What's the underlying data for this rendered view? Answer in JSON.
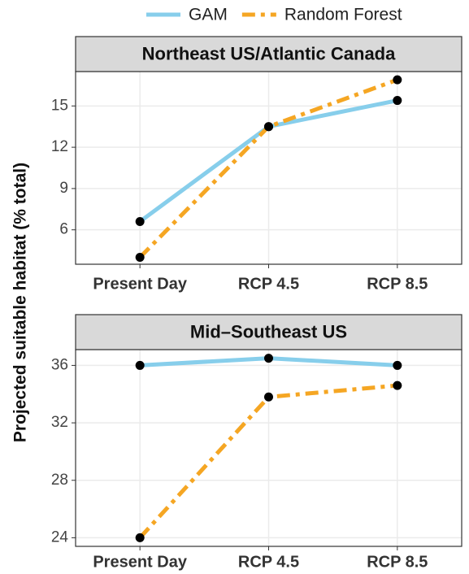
{
  "chart_data": [
    {
      "type": "line",
      "title": "Northeast US/Atlantic Canada",
      "y_label": "Projected suitable habitat (% total)",
      "categories": [
        "Present Day",
        "RCP 4.5",
        "RCP 8.5"
      ],
      "series": [
        {
          "name": "GAM",
          "color": "#87ceeb",
          "dash": "solid",
          "values": [
            6.6,
            13.5,
            15.4
          ]
        },
        {
          "name": "Random Forest",
          "color": "#f5a623",
          "dash": "dashdot",
          "values": [
            4.0,
            13.5,
            16.9
          ]
        }
      ],
      "ylim": [
        3.5,
        17.5
      ],
      "yticks": [
        6,
        9,
        12,
        15
      ],
      "grid": true
    },
    {
      "type": "line",
      "title": "Mid–Southeast US",
      "categories": [
        "Present Day",
        "RCP 4.5",
        "RCP 8.5"
      ],
      "series": [
        {
          "color": "#87ceeb",
          "dash": "solid",
          "values": [
            36.0,
            36.5,
            36.0
          ]
        },
        {
          "color": "#f5a623",
          "dash": "dashdot",
          "values": [
            24.0,
            33.8,
            34.6
          ]
        }
      ],
      "ylim": [
        23.4,
        37.1
      ],
      "yticks": [
        24,
        28,
        32,
        36
      ],
      "grid": true
    }
  ],
  "legend_position": "top"
}
